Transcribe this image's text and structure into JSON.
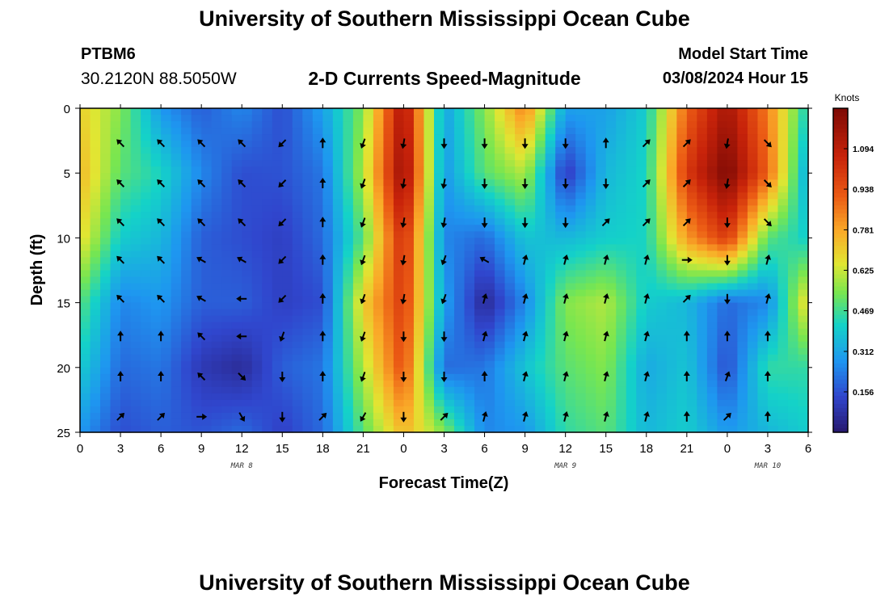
{
  "header": {
    "title": "University of Southern Mississippi Ocean Cube",
    "station_id": "PTBM6",
    "station_location": "30.2120N  88.5050W",
    "chart_title": "2-D Currents Speed-Magnitude",
    "model_start_label": "Model Start Time",
    "model_start_value": "03/08/2024 Hour 15"
  },
  "footer": {
    "title": "University of Southern Mississippi Ocean Cube"
  },
  "chart_data": {
    "type": "heatmap",
    "title": "2-D Currents Speed-Magnitude",
    "xlabel": "Forecast Time(Z)",
    "ylabel": "Depth (ft)",
    "x_tick_labels": [
      "0",
      "3",
      "6",
      "9",
      "12",
      "15",
      "18",
      "21",
      "0",
      "3",
      "6",
      "9",
      "12",
      "15",
      "18",
      "21",
      "0",
      "3",
      "6"
    ],
    "x_range_hours": [
      0,
      54
    ],
    "y_ticks": [
      0,
      5,
      10,
      15,
      20,
      25
    ],
    "y_tick_labels": [
      "0",
      "5",
      "10",
      "15",
      "20",
      "25"
    ],
    "ylim": [
      0,
      25
    ],
    "date_labels": [
      {
        "text": "MAR 8",
        "hour": 12
      },
      {
        "text": "MAR 9",
        "hour": 36
      },
      {
        "text": "MAR 10",
        "hour": 51
      }
    ],
    "colorbar": {
      "label": "Knots",
      "range": [
        0.0,
        1.25
      ],
      "tick_values": [
        1.094,
        0.938,
        0.781,
        0.625,
        0.469,
        0.312,
        0.156
      ],
      "tick_labels": [
        "1.094",
        "0.938",
        "0.781",
        "0.625",
        "0.469",
        "0.312",
        "0.156"
      ]
    },
    "grid_hours": [
      0,
      3,
      6,
      9,
      12,
      15,
      18,
      21,
      24,
      27,
      30,
      33,
      36,
      39,
      42,
      45,
      48,
      51,
      54
    ],
    "grid_depths": [
      0,
      5,
      10,
      15,
      20,
      25
    ],
    "speed_knots": [
      [
        0.7,
        0.55,
        0.28,
        0.18,
        0.25,
        0.15,
        0.3,
        0.55,
        1.15,
        0.3,
        0.55,
        0.85,
        0.3,
        0.3,
        0.4,
        0.9,
        1.15,
        0.85,
        0.4
      ],
      [
        0.75,
        0.5,
        0.42,
        0.25,
        0.15,
        0.16,
        0.22,
        0.6,
        1.2,
        0.28,
        0.5,
        0.6,
        0.1,
        0.35,
        0.42,
        1.0,
        1.25,
        0.9,
        0.3
      ],
      [
        0.68,
        0.4,
        0.35,
        0.18,
        0.15,
        0.12,
        0.2,
        0.5,
        1.05,
        0.25,
        0.2,
        0.38,
        0.35,
        0.4,
        0.42,
        0.8,
        1.0,
        0.5,
        0.4
      ],
      [
        0.5,
        0.25,
        0.28,
        0.18,
        0.18,
        0.12,
        0.15,
        0.7,
        1.0,
        0.3,
        0.05,
        0.25,
        0.55,
        0.6,
        0.4,
        0.35,
        0.2,
        0.25,
        0.7
      ],
      [
        0.4,
        0.2,
        0.22,
        0.1,
        0.06,
        0.18,
        0.22,
        0.6,
        0.95,
        0.2,
        0.22,
        0.38,
        0.5,
        0.55,
        0.32,
        0.38,
        0.15,
        0.45,
        0.45
      ],
      [
        0.28,
        0.15,
        0.18,
        0.16,
        0.2,
        0.12,
        0.2,
        0.5,
        0.75,
        0.55,
        0.25,
        0.28,
        0.45,
        0.5,
        0.35,
        0.4,
        0.28,
        0.35,
        0.4
      ]
    ],
    "arrow_hours": [
      3,
      6,
      9,
      12,
      15,
      18,
      21,
      24,
      27,
      30,
      33,
      36,
      39,
      42,
      45,
      48,
      51
    ],
    "arrow_depths": [
      2.7,
      5.8,
      8.8,
      11.7,
      14.7,
      17.6,
      20.7,
      23.8
    ],
    "arrow_direction_deg": [
      [
        315,
        315,
        315,
        315,
        225,
        0,
        200,
        190,
        180,
        180,
        180,
        180,
        0,
        45,
        45,
        190,
        135
      ],
      [
        315,
        315,
        315,
        315,
        225,
        0,
        200,
        190,
        190,
        180,
        180,
        180,
        180,
        45,
        45,
        190,
        135
      ],
      [
        315,
        315,
        315,
        315,
        225,
        0,
        200,
        190,
        190,
        180,
        180,
        180,
        45,
        45,
        45,
        180,
        135
      ],
      [
        315,
        315,
        300,
        300,
        225,
        0,
        200,
        190,
        200,
        300,
        15,
        15,
        15,
        15,
        90,
        180,
        15
      ],
      [
        315,
        315,
        300,
        270,
        225,
        0,
        200,
        190,
        200,
        15,
        15,
        15,
        15,
        15,
        45,
        180,
        15
      ],
      [
        0,
        0,
        315,
        270,
        200,
        0,
        200,
        180,
        180,
        15,
        15,
        15,
        15,
        15,
        0,
        0,
        0
      ],
      [
        0,
        0,
        315,
        135,
        180,
        0,
        200,
        180,
        180,
        0,
        15,
        15,
        15,
        15,
        0,
        20,
        0
      ],
      [
        45,
        45,
        90,
        150,
        180,
        45,
        210,
        180,
        45,
        15,
        15,
        15,
        15,
        15,
        0,
        45,
        0
      ]
    ]
  }
}
